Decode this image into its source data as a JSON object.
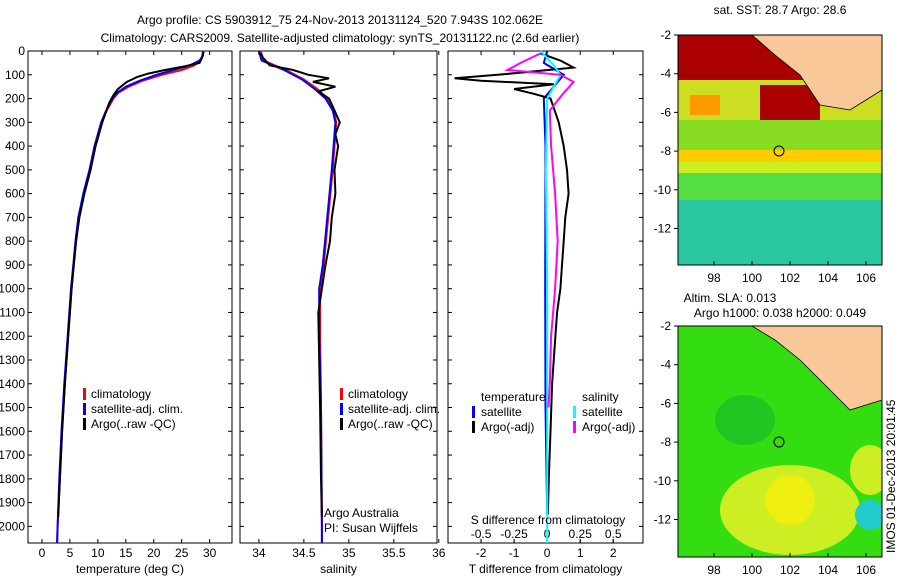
{
  "title": {
    "line1": "Argo profile: CS 5903912_75 24-Nov-2013 20131124_520 7.943S 102.062E",
    "line2": "Climatology: CARS2009. Satellite-adjusted climatology: synTS_20131122.nc (2.6d earlier)"
  },
  "annotations": {
    "institution": "Argo Australia",
    "pi": "PI: Susan Wijffels",
    "timestamp": "IMOS 01-Dec-2013 20:01:45"
  },
  "maps": {
    "sst_title": "sat. SST: 28.7 Argo: 28.6",
    "sla_title1": "Altim. SLA: 0.013",
    "sla_title2": "Argo h1000: 0.038 h2000: 0.049",
    "lon_ticks": [
      "98",
      "100",
      "102",
      "104",
      "106"
    ],
    "lat_ticks": [
      "-2",
      "-4",
      "-6",
      "-8",
      "-10",
      "-12"
    ],
    "float_position": {
      "lon": 102.062,
      "lat": -7.943
    }
  },
  "chart_data": [
    {
      "type": "line",
      "id": "temperature",
      "xlabel": "temperature (deg C)",
      "ylabel": "depth",
      "xlim": [
        -2.5,
        34
      ],
      "ylim": [
        0,
        2070
      ],
      "xticks": [
        "0",
        "5",
        "10",
        "15",
        "20",
        "25",
        "30"
      ],
      "yticks": [
        "0",
        "100",
        "200",
        "300",
        "400",
        "500",
        "600",
        "700",
        "800",
        "900",
        "1000",
        "1100",
        "1200",
        "1300",
        "1400",
        "1500",
        "1600",
        "1700",
        "1800",
        "1900",
        "2000"
      ],
      "legend": [
        "climatology",
        "satellite-adj. clim.",
        "Argo(..raw -QC)"
      ],
      "series": [
        {
          "name": "climatology",
          "color": "#ff0000",
          "points": [
            [
              0,
              28.8
            ],
            [
              20,
              28.7
            ],
            [
              40,
              28.4
            ],
            [
              60,
              27.3
            ],
            [
              80,
              25
            ],
            [
              100,
              21.5
            ],
            [
              125,
              18
            ],
            [
              150,
              15.5
            ],
            [
              175,
              13.7
            ],
            [
              200,
              12.8
            ],
            [
              250,
              11.6
            ],
            [
              300,
              10.7
            ],
            [
              400,
              9.5
            ],
            [
              500,
              8.6
            ],
            [
              600,
              7.5
            ],
            [
              700,
              6.6
            ],
            [
              800,
              6.1
            ],
            [
              900,
              5.7
            ],
            [
              1000,
              5.3
            ],
            [
              1200,
              4.7
            ],
            [
              1400,
              4.1
            ],
            [
              1600,
              3.6
            ],
            [
              1800,
              3.2
            ],
            [
              2000,
              2.8
            ],
            [
              2070,
              2.7
            ]
          ]
        },
        {
          "name": "satellite-adj. clim.",
          "color": "#0000ff",
          "points": [
            [
              0,
              28.9
            ],
            [
              20,
              28.8
            ],
            [
              40,
              28.2
            ],
            [
              60,
              26.5
            ],
            [
              80,
              23.5
            ],
            [
              100,
              20.5
            ],
            [
              125,
              17.5
            ],
            [
              150,
              15
            ],
            [
              175,
              13.5
            ],
            [
              200,
              12.6
            ],
            [
              250,
              11.5
            ],
            [
              300,
              10.6
            ],
            [
              400,
              9.4
            ],
            [
              500,
              8.5
            ],
            [
              600,
              7.4
            ],
            [
              700,
              6.5
            ],
            [
              800,
              6
            ],
            [
              900,
              5.6
            ],
            [
              1000,
              5.2
            ],
            [
              1200,
              4.6
            ],
            [
              1400,
              4
            ],
            [
              1600,
              3.5
            ],
            [
              1800,
              3.1
            ],
            [
              2000,
              2.8
            ],
            [
              2070,
              2.7
            ]
          ]
        },
        {
          "name": "Argo(..raw -QC)",
          "color": "#000000",
          "points": [
            [
              5,
              28.9
            ],
            [
              30,
              28.6
            ],
            [
              50,
              28.2
            ],
            [
              65,
              25.5
            ],
            [
              80,
              22
            ],
            [
              95,
              19
            ],
            [
              110,
              17
            ],
            [
              130,
              15.2
            ],
            [
              160,
              13.6
            ],
            [
              185,
              12.8
            ],
            [
              220,
              12
            ],
            [
              300,
              10.8
            ],
            [
              400,
              9.6
            ],
            [
              500,
              8.7
            ],
            [
              600,
              7.6
            ],
            [
              700,
              6.7
            ],
            [
              800,
              6.1
            ],
            [
              900,
              5.7
            ],
            [
              1000,
              5.3
            ],
            [
              1200,
              4.7
            ],
            [
              1400,
              4.1
            ],
            [
              1600,
              3.6
            ],
            [
              1800,
              3.2
            ],
            [
              1960,
              2.9
            ]
          ]
        }
      ]
    },
    {
      "type": "line",
      "id": "salinity",
      "xlabel": "salinity",
      "ylabel": "depth",
      "xlim": [
        33.79,
        35.98
      ],
      "ylim": [
        0,
        2070
      ],
      "xticks": [
        "34",
        "34.5",
        "35",
        "35.5",
        "36"
      ],
      "legend": [
        "climatology",
        "satellite-adj. clim.",
        "Argo(..raw -QC)"
      ],
      "series": [
        {
          "name": "climatology",
          "color": "#ff0000",
          "points": [
            [
              0,
              34.02
            ],
            [
              40,
              34.05
            ],
            [
              80,
              34.3
            ],
            [
              120,
              34.5
            ],
            [
              160,
              34.65
            ],
            [
              200,
              34.76
            ],
            [
              250,
              34.83
            ],
            [
              300,
              34.86
            ],
            [
              400,
              34.84
            ],
            [
              500,
              34.82
            ],
            [
              700,
              34.77
            ],
            [
              900,
              34.72
            ],
            [
              1000,
              34.68
            ],
            [
              1200,
              34.68
            ],
            [
              1500,
              34.69
            ],
            [
              2000,
              34.7
            ],
            [
              2070,
              34.7
            ]
          ]
        },
        {
          "name": "satellite-adj. clim.",
          "color": "#0000ff",
          "points": [
            [
              0,
              34.0
            ],
            [
              40,
              34.03
            ],
            [
              80,
              34.28
            ],
            [
              120,
              34.48
            ],
            [
              160,
              34.62
            ],
            [
              200,
              34.74
            ],
            [
              250,
              34.82
            ],
            [
              300,
              34.85
            ],
            [
              400,
              34.83
            ],
            [
              500,
              34.81
            ],
            [
              700,
              34.76
            ],
            [
              900,
              34.71
            ],
            [
              1000,
              34.67
            ],
            [
              1200,
              34.67
            ],
            [
              1500,
              34.69
            ],
            [
              2000,
              34.7
            ],
            [
              2070,
              34.7
            ]
          ]
        },
        {
          "name": "Argo(..raw -QC)",
          "color": "#000000",
          "points": [
            [
              5,
              34.0
            ],
            [
              30,
              34.05
            ],
            [
              60,
              34.12
            ],
            [
              80,
              34.38
            ],
            [
              100,
              34.55
            ],
            [
              115,
              34.78
            ],
            [
              130,
              34.6
            ],
            [
              150,
              34.85
            ],
            [
              170,
              34.66
            ],
            [
              200,
              34.78
            ],
            [
              250,
              34.84
            ],
            [
              300,
              34.9
            ],
            [
              350,
              34.85
            ],
            [
              400,
              34.88
            ],
            [
              500,
              34.84
            ],
            [
              600,
              34.85
            ],
            [
              700,
              34.81
            ],
            [
              800,
              34.79
            ],
            [
              900,
              34.74
            ],
            [
              1000,
              34.7
            ],
            [
              1100,
              34.66
            ],
            [
              1300,
              34.67
            ],
            [
              1500,
              34.68
            ],
            [
              1800,
              34.69
            ],
            [
              1960,
              34.7
            ]
          ]
        }
      ]
    },
    {
      "type": "line",
      "id": "difference",
      "xlabel": "T difference from climatology",
      "x2label": "S difference from climatology",
      "xlim": [
        -3,
        2.9
      ],
      "ylim": [
        0,
        2070
      ],
      "xticks": [
        "-2",
        "-1",
        "0",
        "1",
        "2"
      ],
      "x2ticks": [
        "-0.5",
        "-0.25",
        "0",
        "0.25",
        "0.5"
      ],
      "legend_headers": [
        "temperature",
        "salinity"
      ],
      "legend": [
        "satellite",
        "Argo(-adj)",
        "satellite",
        "Argo(-adj)"
      ],
      "series": [
        {
          "name": "T satellite",
          "unit": "T",
          "color": "#0000ff",
          "points": [
            [
              0,
              0
            ],
            [
              50,
              -0.1
            ],
            [
              100,
              0.5
            ],
            [
              150,
              0.2
            ],
            [
              200,
              -0.1
            ],
            [
              400,
              -0.05
            ],
            [
              1000,
              -0.06
            ],
            [
              1500,
              -0.05
            ],
            [
              1950,
              0
            ]
          ]
        },
        {
          "name": "T Argo(-adj)",
          "unit": "T",
          "color": "#000000",
          "points": [
            [
              10,
              -0.2
            ],
            [
              40,
              0.4
            ],
            [
              70,
              0.8
            ],
            [
              100,
              -1.5
            ],
            [
              115,
              -2.8
            ],
            [
              125,
              -2
            ],
            [
              140,
              0.2
            ],
            [
              160,
              -1
            ],
            [
              180,
              -0.4
            ],
            [
              200,
              0.1
            ],
            [
              300,
              0.35
            ],
            [
              400,
              0.5
            ],
            [
              500,
              0.6
            ],
            [
              600,
              0.65
            ],
            [
              700,
              0.55
            ],
            [
              800,
              0.5
            ],
            [
              900,
              0.45
            ],
            [
              1000,
              0.4
            ],
            [
              1100,
              0.3
            ],
            [
              1200,
              0.25
            ],
            [
              1400,
              0.15
            ],
            [
              1600,
              0.1
            ],
            [
              1800,
              0.05
            ],
            [
              1950,
              0.02
            ]
          ]
        },
        {
          "name": "S satellite",
          "unit": "S",
          "color": "#00ffff",
          "points": [
            [
              0,
              -0.05
            ],
            [
              60,
              0.05
            ],
            [
              100,
              0.1
            ],
            [
              150,
              0.05
            ],
            [
              200,
              0
            ],
            [
              500,
              -0.01
            ],
            [
              1000,
              0
            ],
            [
              2070,
              0
            ]
          ]
        },
        {
          "name": "S Argo(-adj)",
          "unit": "S",
          "color": "#ff00ff",
          "points": [
            [
              10,
              -0.05
            ],
            [
              50,
              -0.2
            ],
            [
              80,
              -0.3
            ],
            [
              100,
              0.1
            ],
            [
              130,
              0.2
            ],
            [
              180,
              0.12
            ],
            [
              250,
              0.02
            ],
            [
              400,
              0.03
            ],
            [
              600,
              0.06
            ],
            [
              800,
              0.08
            ],
            [
              1000,
              0.06
            ],
            [
              1200,
              0.03
            ],
            [
              1400,
              0.02
            ],
            [
              1500,
              0.01
            ]
          ]
        }
      ]
    }
  ]
}
